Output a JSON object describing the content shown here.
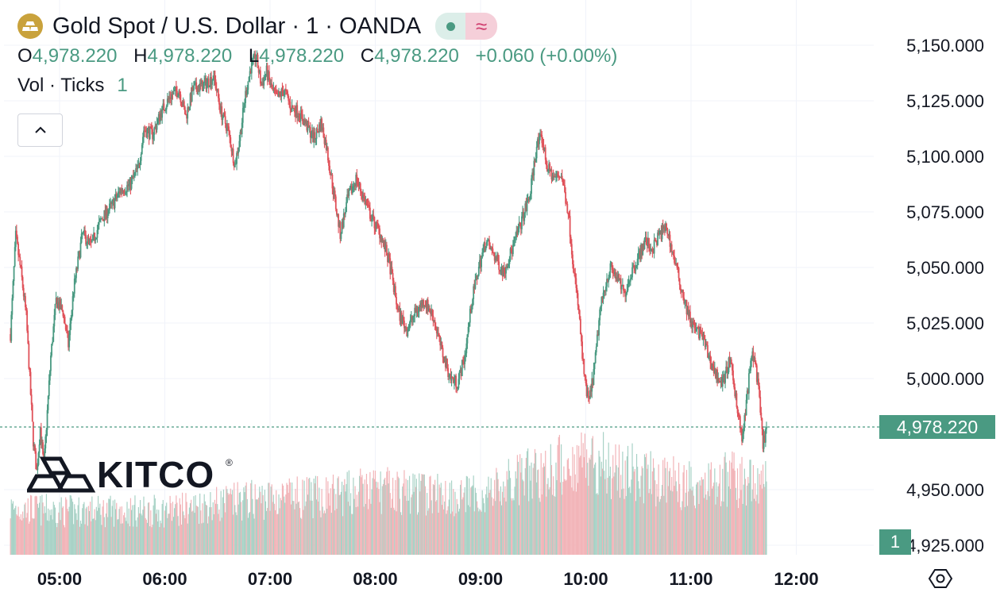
{
  "header": {
    "symbol_icon": "gold-bars-icon",
    "title": "Gold Spot / U.S. Dollar · 1 · OANDA",
    "status_icons": [
      "market-open-dot-icon",
      "delayed-data-icon"
    ]
  },
  "ohlc": {
    "o_label": "O",
    "o_value": "4,978.220",
    "h_label": "H",
    "h_value": "4,978.220",
    "l_label": "L",
    "l_value": "4,978.220",
    "c_label": "C",
    "c_value": "4,978.220",
    "change": "+0.060 (+0.00%)"
  },
  "volume_indicator": {
    "label": "Vol · Ticks",
    "value": "1"
  },
  "watermark": {
    "text": "KITCO",
    "icon": "kitco-logo-icon"
  },
  "colors": {
    "up": "#4a9a82",
    "down": "#e0525a",
    "up_volume": "#a8d2c6",
    "down_volume": "#f2b4b8",
    "grid": "#f0f3fa",
    "text": "#131722"
  },
  "chart_data": {
    "type": "candlestick",
    "title": "Gold Spot / U.S. Dollar · 1 · OANDA",
    "interval_minutes": 1,
    "ylim": [
      4915,
      5165
    ],
    "y_ticks": [
      "5,150.000",
      "5,125.000",
      "5,100.000",
      "5,075.000",
      "5,050.000",
      "5,025.000",
      "5,000.000",
      "4,950.000",
      "4,925.000"
    ],
    "x_ticks": [
      "05:00",
      "06:00",
      "07:00",
      "08:00",
      "09:00",
      "10:00",
      "11:00",
      "12:00"
    ],
    "last_price": 4978.22,
    "last_price_label": "4,978.220",
    "last_volume": "1",
    "close_path": [
      {
        "time": "04:32",
        "price": 5020
      },
      {
        "time": "04:35",
        "price": 5064
      },
      {
        "time": "04:38",
        "price": 5048
      },
      {
        "time": "04:41",
        "price": 5028
      },
      {
        "time": "04:43",
        "price": 5000
      },
      {
        "time": "04:45",
        "price": 4972
      },
      {
        "time": "04:47",
        "price": 4958
      },
      {
        "time": "04:49",
        "price": 4978
      },
      {
        "time": "04:51",
        "price": 4960
      },
      {
        "time": "04:53",
        "price": 4985
      },
      {
        "time": "04:55",
        "price": 5010
      },
      {
        "time": "04:58",
        "price": 5035
      },
      {
        "time": "05:02",
        "price": 5030
      },
      {
        "time": "05:05",
        "price": 5015
      },
      {
        "time": "05:08",
        "price": 5040
      },
      {
        "time": "05:13",
        "price": 5065
      },
      {
        "time": "05:18",
        "price": 5060
      },
      {
        "time": "05:24",
        "price": 5072
      },
      {
        "time": "05:30",
        "price": 5078
      },
      {
        "time": "05:35",
        "price": 5085
      },
      {
        "time": "05:40",
        "price": 5087
      },
      {
        "time": "05:45",
        "price": 5095
      },
      {
        "time": "05:48",
        "price": 5112
      },
      {
        "time": "05:53",
        "price": 5110
      },
      {
        "time": "05:58",
        "price": 5120
      },
      {
        "time": "06:03",
        "price": 5127
      },
      {
        "time": "06:08",
        "price": 5130
      },
      {
        "time": "06:12",
        "price": 5118
      },
      {
        "time": "06:16",
        "price": 5130
      },
      {
        "time": "06:22",
        "price": 5132
      },
      {
        "time": "06:28",
        "price": 5136
      },
      {
        "time": "06:32",
        "price": 5120
      },
      {
        "time": "06:36",
        "price": 5112
      },
      {
        "time": "06:40",
        "price": 5096
      },
      {
        "time": "06:43",
        "price": 5110
      },
      {
        "time": "06:46",
        "price": 5128
      },
      {
        "time": "06:49",
        "price": 5140
      },
      {
        "time": "06:52",
        "price": 5145
      },
      {
        "time": "06:55",
        "price": 5132
      },
      {
        "time": "06:58",
        "price": 5138
      },
      {
        "time": "07:01",
        "price": 5130
      },
      {
        "time": "07:04",
        "price": 5126
      },
      {
        "time": "07:08",
        "price": 5130
      },
      {
        "time": "07:12",
        "price": 5122
      },
      {
        "time": "07:16",
        "price": 5120
      },
      {
        "time": "07:20",
        "price": 5115
      },
      {
        "time": "07:25",
        "price": 5108
      },
      {
        "time": "07:29",
        "price": 5115
      },
      {
        "time": "07:32",
        "price": 5105
      },
      {
        "time": "07:36",
        "price": 5085
      },
      {
        "time": "07:40",
        "price": 5065
      },
      {
        "time": "07:44",
        "price": 5080
      },
      {
        "time": "07:49",
        "price": 5090
      },
      {
        "time": "07:53",
        "price": 5082
      },
      {
        "time": "07:58",
        "price": 5072
      },
      {
        "time": "08:03",
        "price": 5065
      },
      {
        "time": "08:08",
        "price": 5052
      },
      {
        "time": "08:13",
        "price": 5030
      },
      {
        "time": "08:18",
        "price": 5022
      },
      {
        "time": "08:23",
        "price": 5030
      },
      {
        "time": "08:28",
        "price": 5035
      },
      {
        "time": "08:33",
        "price": 5028
      },
      {
        "time": "08:38",
        "price": 5012
      },
      {
        "time": "08:43",
        "price": 5000
      },
      {
        "time": "08:47",
        "price": 4998
      },
      {
        "time": "08:51",
        "price": 5010
      },
      {
        "time": "08:55",
        "price": 5035
      },
      {
        "time": "08:59",
        "price": 5050
      },
      {
        "time": "09:03",
        "price": 5062
      },
      {
        "time": "09:08",
        "price": 5055
      },
      {
        "time": "09:13",
        "price": 5048
      },
      {
        "time": "09:18",
        "price": 5058
      },
      {
        "time": "09:23",
        "price": 5070
      },
      {
        "time": "09:28",
        "price": 5082
      },
      {
        "time": "09:32",
        "price": 5105
      },
      {
        "time": "09:35",
        "price": 5108
      },
      {
        "time": "09:38",
        "price": 5095
      },
      {
        "time": "09:42",
        "price": 5090
      },
      {
        "time": "09:46",
        "price": 5092
      },
      {
        "time": "09:50",
        "price": 5075
      },
      {
        "time": "09:53",
        "price": 5050
      },
      {
        "time": "09:56",
        "price": 5030
      },
      {
        "time": "09:58",
        "price": 5010
      },
      {
        "time": "10:00",
        "price": 4995
      },
      {
        "time": "10:02",
        "price": 4990
      },
      {
        "time": "10:05",
        "price": 5005
      },
      {
        "time": "10:08",
        "price": 5030
      },
      {
        "time": "10:11",
        "price": 5042
      },
      {
        "time": "10:14",
        "price": 5050
      },
      {
        "time": "10:18",
        "price": 5045
      },
      {
        "time": "10:22",
        "price": 5038
      },
      {
        "time": "10:26",
        "price": 5048
      },
      {
        "time": "10:30",
        "price": 5055
      },
      {
        "time": "10:34",
        "price": 5062
      },
      {
        "time": "10:38",
        "price": 5058
      },
      {
        "time": "10:42",
        "price": 5065
      },
      {
        "time": "10:46",
        "price": 5068
      },
      {
        "time": "10:50",
        "price": 5055
      },
      {
        "time": "10:54",
        "price": 5042
      },
      {
        "time": "10:58",
        "price": 5030
      },
      {
        "time": "11:02",
        "price": 5022
      },
      {
        "time": "11:06",
        "price": 5020
      },
      {
        "time": "11:10",
        "price": 5010
      },
      {
        "time": "11:14",
        "price": 5002
      },
      {
        "time": "11:18",
        "price": 4998
      },
      {
        "time": "11:22",
        "price": 5008
      },
      {
        "time": "11:26",
        "price": 4990
      },
      {
        "time": "11:29",
        "price": 4972
      },
      {
        "time": "11:31",
        "price": 4985
      },
      {
        "time": "11:33",
        "price": 5000
      },
      {
        "time": "11:35",
        "price": 5012
      },
      {
        "time": "11:37",
        "price": 5005
      },
      {
        "time": "11:39",
        "price": 4990
      },
      {
        "time": "11:41",
        "price": 4970
      },
      {
        "time": "11:43",
        "price": 4978.22
      }
    ],
    "volume_path": [
      {
        "time": "04:32",
        "volume": 0.32
      },
      {
        "time": "05:00",
        "volume": 0.3
      },
      {
        "time": "06:00",
        "volume": 0.3
      },
      {
        "time": "06:50",
        "volume": 0.38
      },
      {
        "time": "07:30",
        "volume": 0.4
      },
      {
        "time": "08:00",
        "volume": 0.45
      },
      {
        "time": "08:30",
        "volume": 0.42
      },
      {
        "time": "09:00",
        "volume": 0.4
      },
      {
        "time": "09:30",
        "volume": 0.55
      },
      {
        "time": "09:50",
        "volume": 0.62
      },
      {
        "time": "10:00",
        "volume": 0.68
      },
      {
        "time": "10:20",
        "volume": 0.58
      },
      {
        "time": "10:40",
        "volume": 0.52
      },
      {
        "time": "11:00",
        "volume": 0.48
      },
      {
        "time": "11:20",
        "volume": 0.52
      },
      {
        "time": "11:43",
        "volume": 0.5
      }
    ]
  }
}
